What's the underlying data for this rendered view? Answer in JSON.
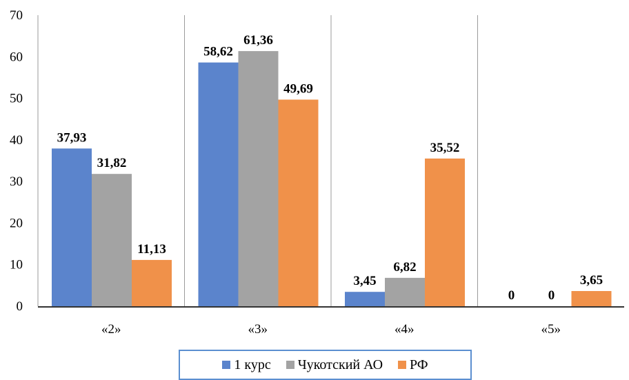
{
  "chart_data": {
    "type": "bar",
    "categories": [
      "«2»",
      "«3»",
      "«4»",
      "«5»"
    ],
    "series": [
      {
        "name": "1 курс",
        "values": [
          37.93,
          58.62,
          3.45,
          0
        ],
        "labels": [
          "37,93",
          "58,62",
          "3,45",
          "0"
        ],
        "color": "#5b84cc"
      },
      {
        "name": "Чукотский АО",
        "values": [
          31.82,
          61.36,
          6.82,
          0
        ],
        "labels": [
          "31,82",
          "61,36",
          "6,82",
          "0"
        ],
        "color": "#a3a3a3"
      },
      {
        "name": "РФ",
        "values": [
          11.13,
          49.69,
          35.52,
          3.65
        ],
        "labels": [
          "11,13",
          "49,69",
          "35,52",
          "3,65"
        ],
        "color": "#f0914a"
      }
    ],
    "ylim": [
      0,
      70
    ],
    "yticks": [
      "0",
      "10",
      "20",
      "30",
      "40",
      "50",
      "60",
      "70"
    ],
    "grid": "vertical category separators",
    "legend_position": "bottom",
    "title": "",
    "xlabel": "",
    "ylabel": ""
  }
}
